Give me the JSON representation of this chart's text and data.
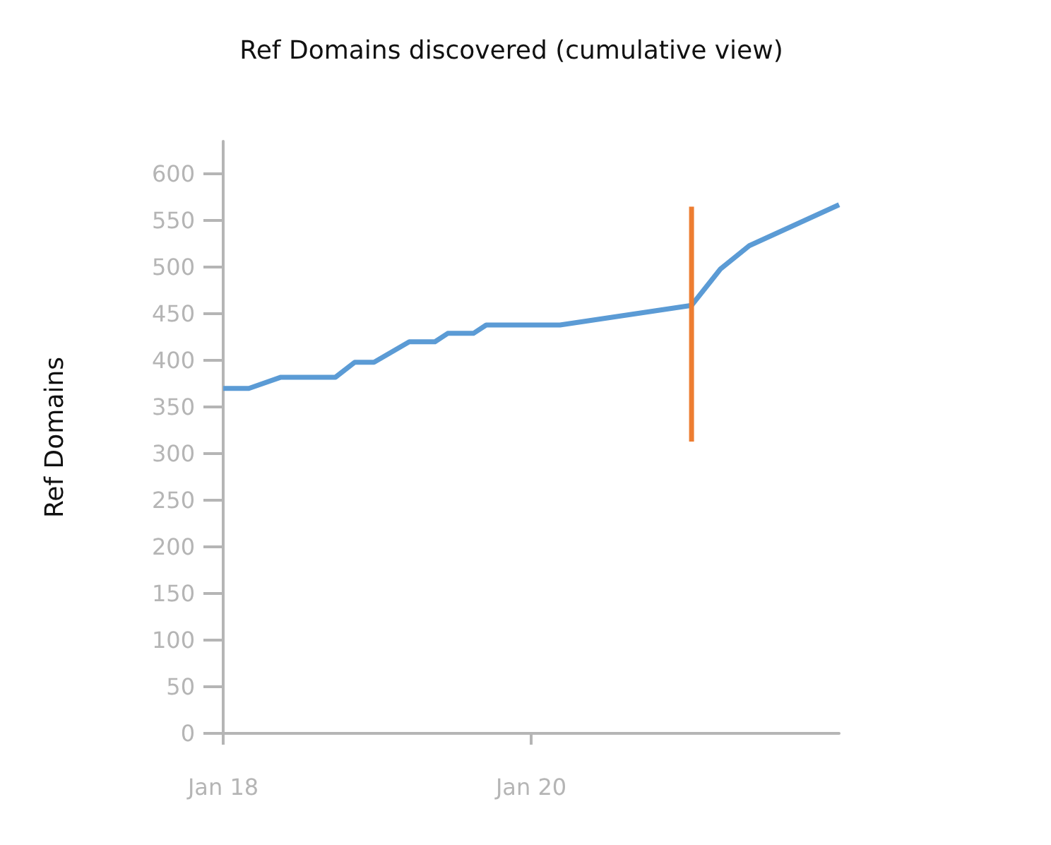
{
  "chart_data": {
    "type": "line",
    "title": "Ref Domains discovered (cumulative view)",
    "ylabel": "Ref Domains",
    "series": [
      {
        "color": "#5b9bd5",
        "x": [
          "--01-18T00:00",
          "--01-18T04:00",
          "--01-18T09:00",
          "--01-18T17:30",
          "--01-18T20:30",
          "--01-18T23:30",
          "--01-19T05:00",
          "--01-19T09:00",
          "--01-19T11:00",
          "--01-19T15:00",
          "--01-19T17:00",
          "--01-20T04:30",
          "--01-21T01:00",
          "--01-21T05:30",
          "--01-21T10:00",
          "--01-22T00:00"
        ],
        "values": [
          370,
          370,
          382,
          382,
          398,
          398,
          420,
          420,
          429,
          429,
          438,
          438,
          459,
          498,
          523,
          567
        ]
      },
      {
        "color": "#ed7d31",
        "x": [
          "--01-21T01:00",
          "--01-21T01:00"
        ],
        "values": [
          313,
          565
        ]
      }
    ],
    "xlim": [
      "--01-18T00:00",
      "--01-22T00:00"
    ],
    "xticks": [
      {
        "value": "--01-18",
        "label": "Jan 18"
      },
      {
        "value": "--01-20",
        "label": "Jan 20"
      }
    ],
    "ylim": [
      0,
      635
    ],
    "yticks": [
      0,
      50,
      100,
      150,
      200,
      250,
      300,
      350,
      400,
      450,
      500,
      550,
      600
    ],
    "grid": false,
    "marker": "none",
    "line_style": "solid"
  }
}
